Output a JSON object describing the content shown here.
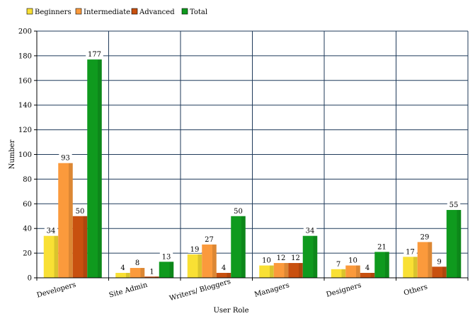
{
  "chart_data": {
    "type": "bar",
    "xlabel": "User Role",
    "ylabel": "Number",
    "ylim": [
      0,
      200
    ],
    "yticks": [
      0,
      20,
      40,
      60,
      80,
      100,
      120,
      140,
      160,
      180,
      200
    ],
    "grid": true,
    "legend_position": "top-left",
    "categories": [
      "Developers",
      "Site Admin",
      "Writers/ Bloggers",
      "Managers",
      "Designers",
      "Others"
    ],
    "series": [
      {
        "name": "Beginners",
        "color": "#f9e034",
        "values": [
          34,
          4,
          19,
          10,
          7,
          17
        ]
      },
      {
        "name": "Intermediate",
        "color": "#fb9a3c",
        "values": [
          93,
          8,
          27,
          12,
          10,
          29
        ]
      },
      {
        "name": "Advanced",
        "color": "#c8500f",
        "values": [
          50,
          1,
          4,
          12,
          4,
          9
        ]
      },
      {
        "name": "Total",
        "color": "#0f9a1e",
        "values": [
          177,
          13,
          50,
          34,
          21,
          55
        ]
      }
    ]
  }
}
